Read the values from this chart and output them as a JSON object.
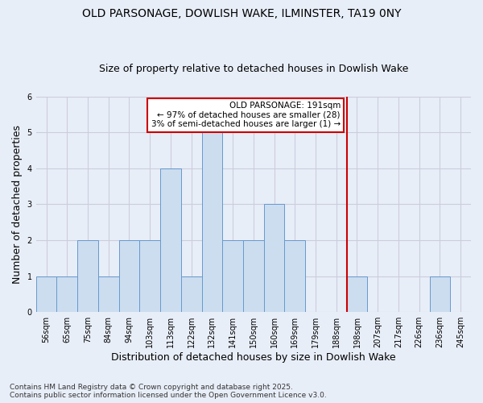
{
  "title": "OLD PARSONAGE, DOWLISH WAKE, ILMINSTER, TA19 0NY",
  "subtitle": "Size of property relative to detached houses in Dowlish Wake",
  "xlabel": "Distribution of detached houses by size in Dowlish Wake",
  "ylabel": "Number of detached properties",
  "footnote": "Contains HM Land Registry data © Crown copyright and database right 2025.\nContains public sector information licensed under the Open Government Licence v3.0.",
  "bin_labels": [
    "56sqm",
    "65sqm",
    "75sqm",
    "84sqm",
    "94sqm",
    "103sqm",
    "113sqm",
    "122sqm",
    "132sqm",
    "141sqm",
    "150sqm",
    "160sqm",
    "169sqm",
    "179sqm",
    "188sqm",
    "198sqm",
    "207sqm",
    "217sqm",
    "226sqm",
    "236sqm",
    "245sqm"
  ],
  "bar_values": [
    1,
    1,
    2,
    1,
    2,
    2,
    4,
    1,
    5,
    2,
    2,
    3,
    2,
    0,
    0,
    1,
    0,
    0,
    0,
    1,
    0
  ],
  "bar_color": "#ccddf0",
  "bar_edge_color": "#6699cc",
  "red_line_index": 14,
  "annotation_line1": "OLD PARSONAGE: 191sqm",
  "annotation_line2": "← 97% of detached houses are smaller (28)",
  "annotation_line3": "3% of semi-detached houses are larger (1) →",
  "annotation_box_color": "#ffffff",
  "annotation_box_edge": "#cc0000",
  "ylim": [
    0,
    6
  ],
  "yticks": [
    0,
    1,
    2,
    3,
    4,
    5,
    6
  ],
  "grid_color": "#ccccdd",
  "background_color": "#e8eef8",
  "plot_bg_color": "#e8eef8",
  "title_fontsize": 10,
  "subtitle_fontsize": 9,
  "tick_fontsize": 7,
  "axis_label_fontsize": 9,
  "footnote_fontsize": 6.5
}
